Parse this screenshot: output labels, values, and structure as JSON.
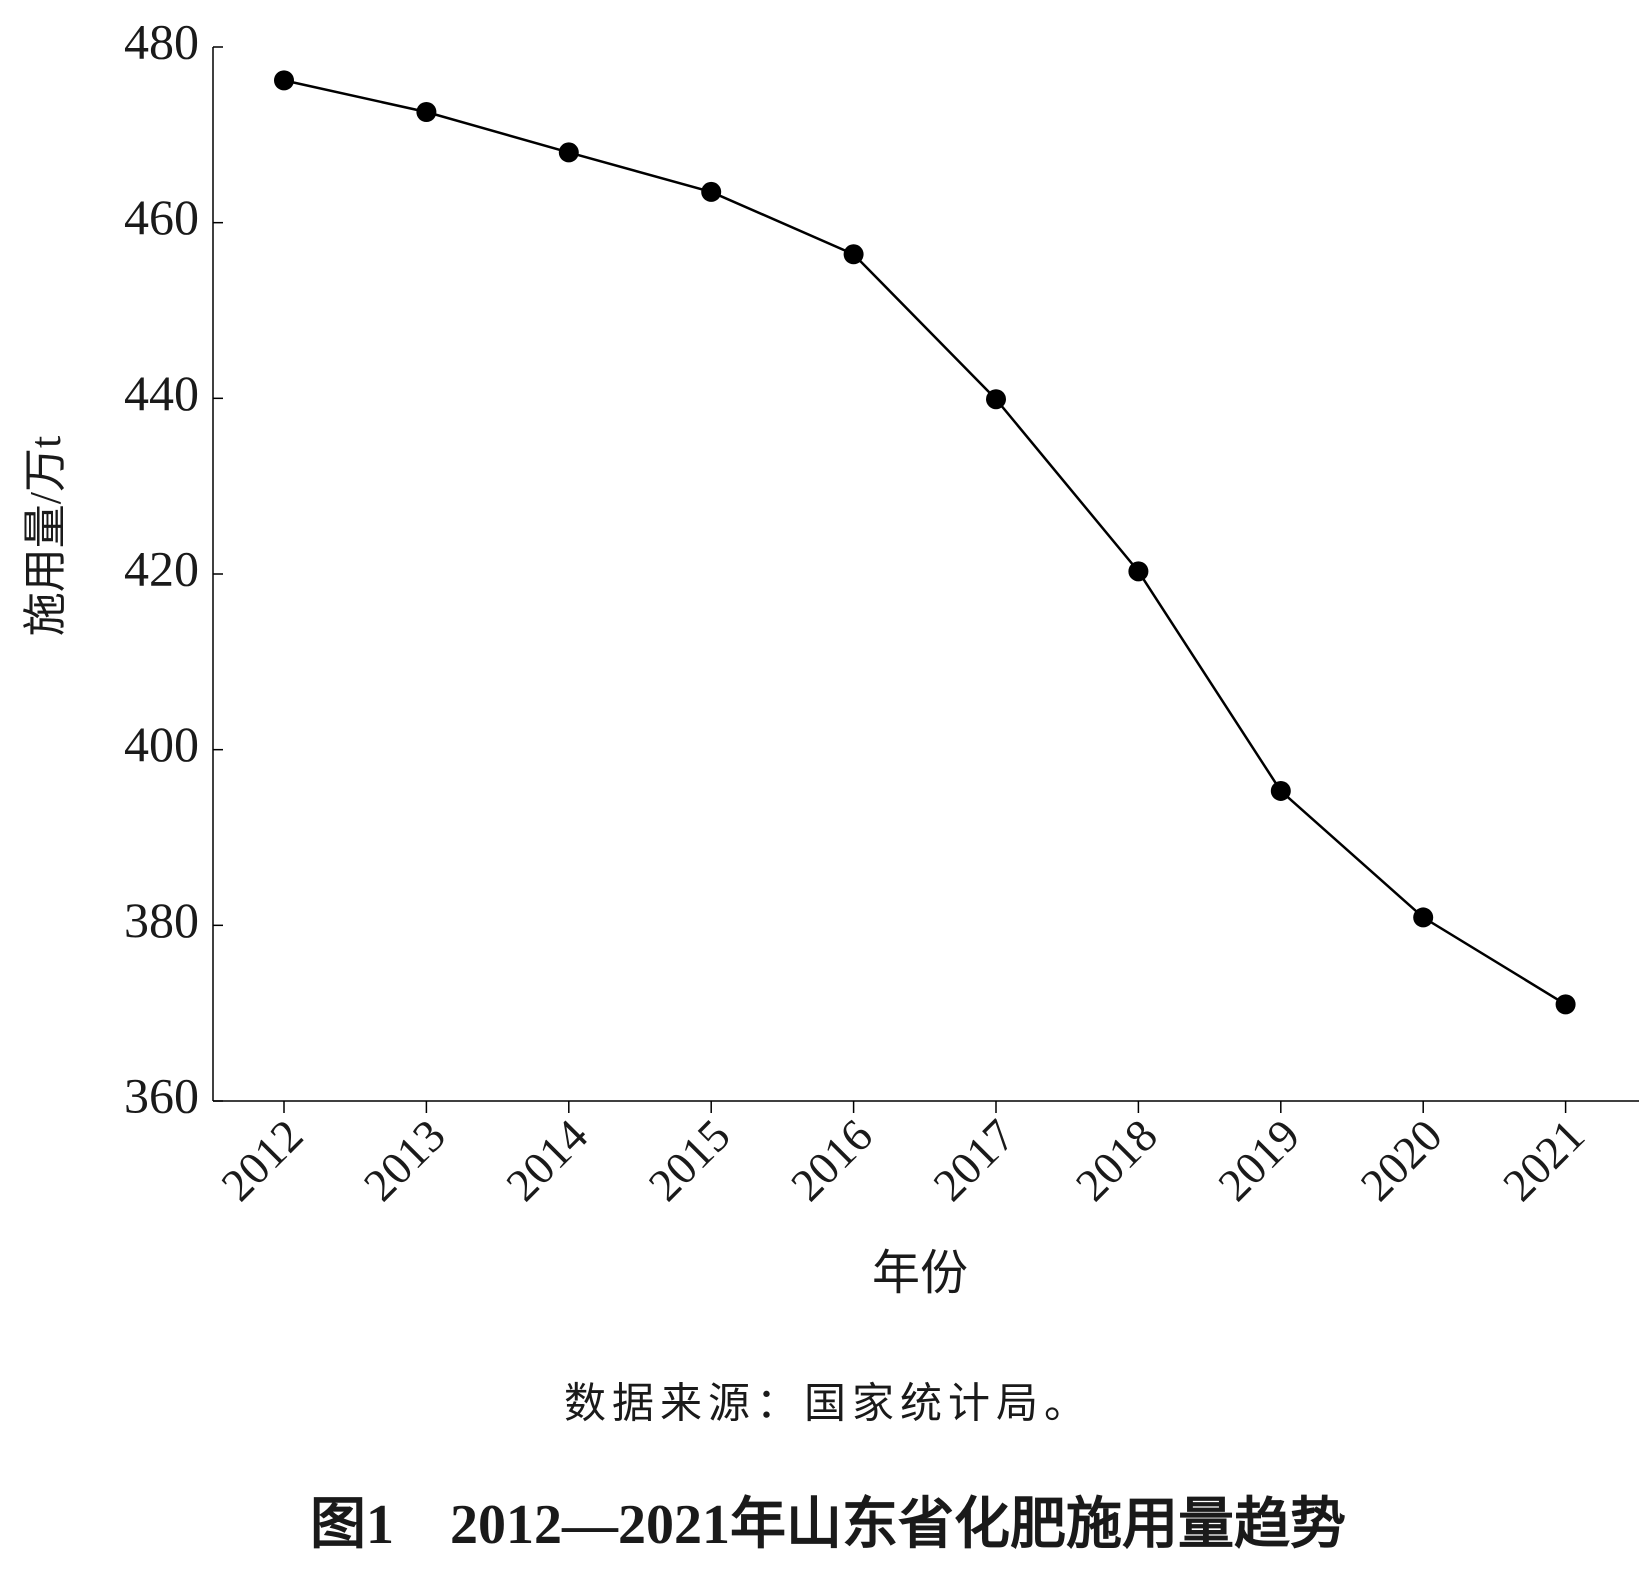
{
  "chart_data": {
    "type": "line",
    "title": "图1　2012—2021年山东省化肥施用量趋势",
    "note": "数据来源：国家统计局。",
    "x_label": "年份",
    "y_label": "施用量/万t",
    "categories": [
      "2012",
      "2013",
      "2014",
      "2015",
      "2016",
      "2017",
      "2018",
      "2019",
      "2020",
      "2021"
    ],
    "series": [
      {
        "color": "#000000",
        "values": [
          476.2,
          472.6,
          468.0,
          463.5,
          456.4,
          439.9,
          420.3,
          395.3,
          380.9,
          371.0
        ]
      }
    ],
    "ylim": [
      360,
      480
    ],
    "yticks": [
      360,
      380,
      400,
      420,
      440,
      460,
      480
    ],
    "grid": false
  }
}
